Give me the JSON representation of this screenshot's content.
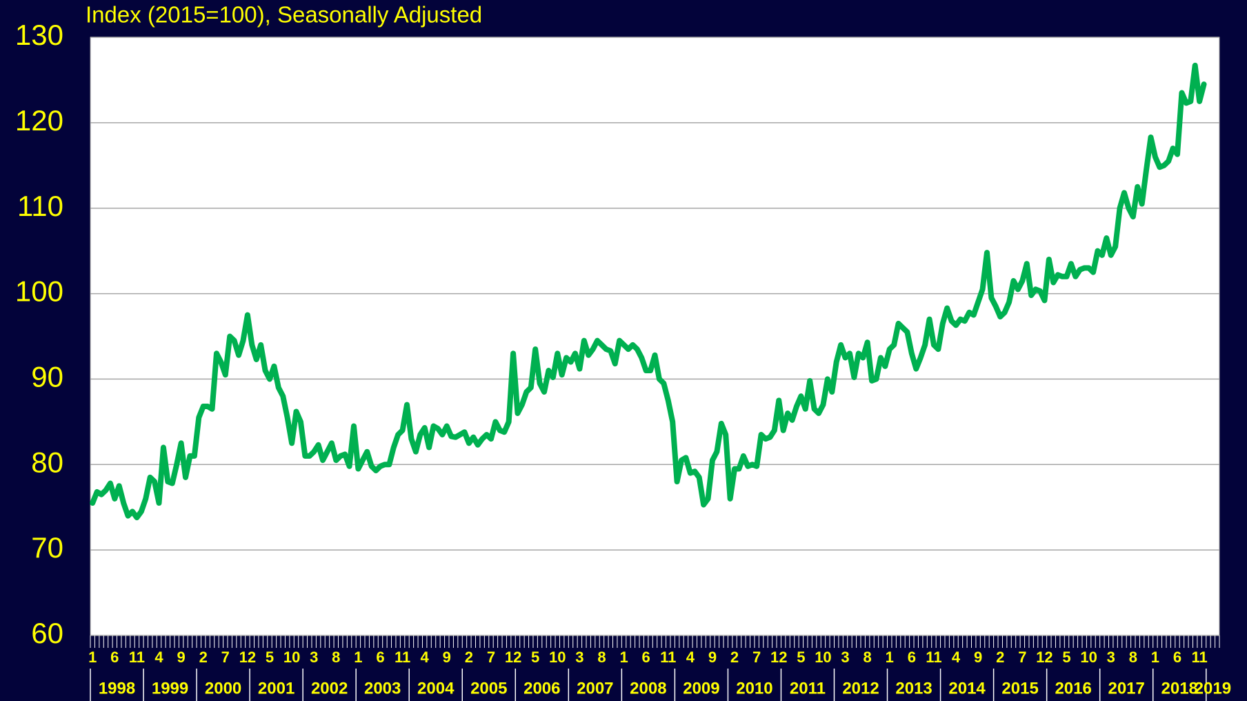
{
  "chart_data": {
    "type": "line",
    "title": "Index (2015=100), Seasonally Adjusted",
    "categories": [
      "1",
      null,
      null,
      null,
      null,
      "6",
      null,
      null,
      null,
      null,
      "11",
      null,
      null,
      null,
      null,
      "4",
      null,
      null,
      null,
      null,
      "9",
      null,
      null,
      null,
      null,
      "2",
      null,
      null,
      null,
      null,
      "7",
      null,
      null,
      null,
      null,
      "12",
      null,
      null,
      null,
      null,
      "5",
      null,
      null,
      null,
      null,
      "10",
      null,
      null,
      null,
      null,
      "3",
      null,
      null,
      null,
      null,
      "8",
      null,
      null,
      null,
      null,
      "1",
      null,
      null,
      null,
      null,
      "6",
      null,
      null,
      null,
      null,
      "11",
      null,
      null,
      null,
      null,
      "4",
      null,
      null,
      null,
      null,
      "9",
      null,
      null,
      null,
      null,
      "2",
      null,
      null,
      null,
      null,
      "7",
      null,
      null,
      null,
      null,
      "12",
      null,
      null,
      null,
      null,
      "5",
      null,
      null,
      null,
      null,
      "10",
      null,
      null,
      null,
      null,
      "3",
      null,
      null,
      null,
      null,
      "8",
      null,
      null,
      null,
      null,
      "1",
      null,
      null,
      null,
      null,
      "6",
      null,
      null,
      null,
      null,
      "11",
      null,
      null,
      null,
      null,
      "4",
      null,
      null,
      null,
      null,
      "9",
      null,
      null,
      null,
      null,
      "2",
      null,
      null,
      null,
      null,
      "7",
      null,
      null,
      null,
      null,
      "12",
      null,
      null,
      null,
      null,
      "5",
      null,
      null,
      null,
      null,
      "10",
      null,
      null,
      null,
      null,
      "3",
      null,
      null,
      null,
      null,
      "8",
      null,
      null,
      null,
      null,
      "1",
      null,
      null,
      null,
      null,
      "6",
      null,
      null,
      null,
      null,
      "11",
      null,
      null,
      null,
      null,
      "4",
      null,
      null,
      null,
      null,
      "9",
      null,
      null,
      null,
      null,
      "2",
      null,
      null,
      null,
      null,
      "7",
      null,
      null,
      null,
      null,
      "12",
      null,
      null,
      null,
      null,
      "5",
      null,
      null,
      null,
      null,
      "10",
      null,
      null,
      null,
      null,
      "3",
      null,
      null,
      null,
      null,
      "8",
      null,
      null,
      null,
      null,
      "1",
      null,
      null,
      null,
      null,
      "6",
      null,
      null,
      null,
      null,
      "11",
      null
    ],
    "years": [
      "1998",
      "1999",
      "2000",
      "2001",
      "2002",
      "2003",
      "2004",
      "2005",
      "2006",
      "2007",
      "2008",
      "2009",
      "2010",
      "2011",
      "2012",
      "2013",
      "2014",
      "2015",
      "2016",
      "2017",
      "2018",
      "2019"
    ],
    "series": [
      {
        "color": "#00b050",
        "values": [
          75.5,
          76.8,
          76.5,
          77,
          77.8,
          76,
          77.5,
          75.5,
          74,
          74.5,
          73.8,
          74.5,
          76,
          78.5,
          78,
          75.5,
          82,
          78,
          77.8,
          80,
          82.5,
          78.5,
          81,
          81,
          85.5,
          86.8,
          86.8,
          86.5,
          93,
          92,
          90.5,
          95,
          94.5,
          92.8,
          94.5,
          97.5,
          94,
          92.3,
          94,
          91,
          90,
          91.5,
          89,
          88,
          85.5,
          82.5,
          86.2,
          85,
          81,
          81,
          81.5,
          82.3,
          80.5,
          81.5,
          82.5,
          80.5,
          81,
          81.2,
          79.8,
          84.5,
          79.5,
          80.5,
          81.5,
          79.8,
          79.3,
          79.8,
          80,
          80,
          82,
          83.5,
          84,
          87,
          83,
          81.5,
          83.5,
          84.3,
          82,
          84.5,
          84.2,
          83.5,
          84.5,
          83.3,
          83.2,
          83.5,
          83.8,
          82.5,
          83.2,
          82.3,
          83,
          83.5,
          83,
          85,
          84,
          83.8,
          85,
          93,
          86,
          87,
          88.5,
          89,
          93.5,
          89.5,
          88.5,
          91,
          90.2,
          93,
          90.5,
          92.5,
          92,
          93,
          91.2,
          94.5,
          92.8,
          93.5,
          94.5,
          94,
          93.5,
          93.3,
          91.8,
          94.5,
          94,
          93.5,
          94,
          93.5,
          92.5,
          91,
          91,
          92.8,
          90,
          89.5,
          87.5,
          85,
          78,
          80.5,
          80.8,
          79,
          79.2,
          78.5,
          75.3,
          76,
          80.5,
          81.5,
          84.8,
          83.5,
          76,
          79.5,
          79.5,
          81,
          79.8,
          80,
          79.8,
          83.5,
          83,
          83.2,
          84,
          87.5,
          84,
          86,
          85.2,
          86.8,
          88,
          86.5,
          89.8,
          86.5,
          86,
          87,
          90,
          88.5,
          92,
          94,
          92.5,
          93,
          90.2,
          93,
          92.5,
          94.3,
          89.8,
          90,
          92.5,
          91.5,
          93.5,
          94,
          96.5,
          96,
          95.5,
          93,
          91.2,
          92.5,
          94,
          97,
          94,
          93.5,
          96.5,
          98.3,
          96.8,
          96.3,
          97,
          96.8,
          97.8,
          97.5,
          99,
          100.5,
          104.8,
          99.5,
          98.5,
          97.3,
          97.8,
          99,
          101.5,
          100.5,
          101.5,
          103.5,
          99.8,
          100.5,
          100.3,
          99.2,
          104,
          101.3,
          102.2,
          102,
          102,
          103.5,
          102,
          102.8,
          103,
          103,
          102.5,
          105,
          104.5,
          106.5,
          104.5,
          105.5,
          110,
          111.8,
          110,
          109,
          112.5,
          110.5,
          114.5,
          118.3,
          116,
          114.8,
          115,
          115.5,
          117,
          116.3,
          123.5,
          122.3,
          122.5,
          126.7,
          122.5,
          124.5
        ]
      }
    ],
    "ylim": [
      60,
      130
    ],
    "yticks": [
      60,
      70,
      80,
      90,
      100,
      110,
      120,
      130
    ],
    "grid": true
  }
}
